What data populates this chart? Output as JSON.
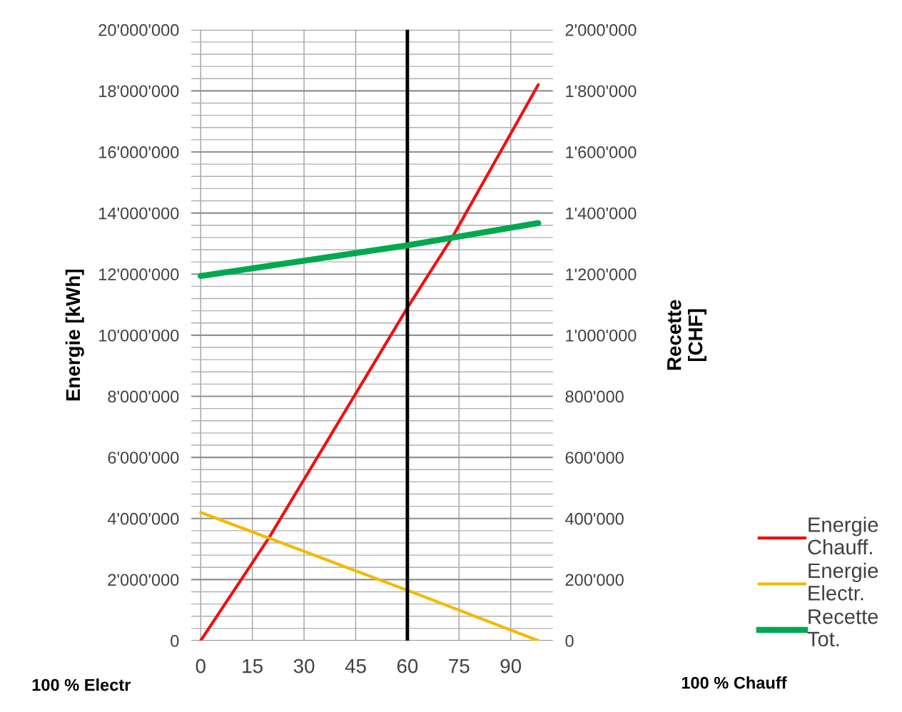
{
  "chart_data": {
    "type": "line",
    "ylabel": "Energie [kWh]",
    "y2label": "Recette\n[CHF]",
    "xlim": [
      -2.75,
      102.25
    ],
    "xticks": [
      0,
      15,
      30,
      45,
      60,
      75,
      90
    ],
    "ylim": [
      0,
      20000000
    ],
    "yticks": [
      {
        "value": 0,
        "label": "0"
      },
      {
        "value": 2000000,
        "label": "2'000'000"
      },
      {
        "value": 4000000,
        "label": "4'000'000"
      },
      {
        "value": 6000000,
        "label": "6'000'000"
      },
      {
        "value": 8000000,
        "label": "8'000'000"
      },
      {
        "value": 10000000,
        "label": "10'000'000"
      },
      {
        "value": 12000000,
        "label": "12'000'000"
      },
      {
        "value": 14000000,
        "label": "14'000'000"
      },
      {
        "value": 16000000,
        "label": "16'000'000"
      },
      {
        "value": 18000000,
        "label": "18'000'000"
      },
      {
        "value": 20000000,
        "label": "20'000'000"
      }
    ],
    "y2lim": [
      0,
      2000000
    ],
    "y2ticks": [
      {
        "value": 0,
        "label": "0"
      },
      {
        "value": 200000,
        "label": "200'000"
      },
      {
        "value": 400000,
        "label": "400'000"
      },
      {
        "value": 600000,
        "label": "600'000"
      },
      {
        "value": 800000,
        "label": "800'000"
      },
      {
        "value": 1000000,
        "label": "1'000'000"
      },
      {
        "value": 1200000,
        "label": "1'200'000"
      },
      {
        "value": 1400000,
        "label": "1'400'000"
      },
      {
        "value": 1600000,
        "label": "1'600'000"
      },
      {
        "value": 1800000,
        "label": "1'800'000"
      },
      {
        "value": 2000000,
        "label": "2'000'000"
      }
    ],
    "grid": true,
    "legend": "bottom right",
    "marker": "none",
    "line_style": "solid",
    "series": [
      {
        "name": "Energie\nChauff.",
        "color": "#ee1111",
        "x": [
          0,
          20,
          60,
          73,
          98
        ],
        "values": [
          0,
          3400000,
          10900000,
          13200000,
          18200000
        ]
      },
      {
        "name": "Energie\nElectr.",
        "color": "#f5b800",
        "x": [
          0,
          60,
          98
        ],
        "values": [
          4200000,
          1650000,
          0
        ]
      },
      {
        "name": "Recette\nTot.",
        "color": "#00a84f",
        "axis": "y2",
        "x": [
          0,
          60,
          98
        ],
        "values": [
          1194000,
          1294000,
          1367000
        ]
      }
    ],
    "ref_lines": [
      {
        "axis": "x",
        "value": 60,
        "color": "#000000",
        "line_style": "solid"
      }
    ],
    "annotations": [
      "100 % Electr",
      "100 % Chauff"
    ]
  }
}
